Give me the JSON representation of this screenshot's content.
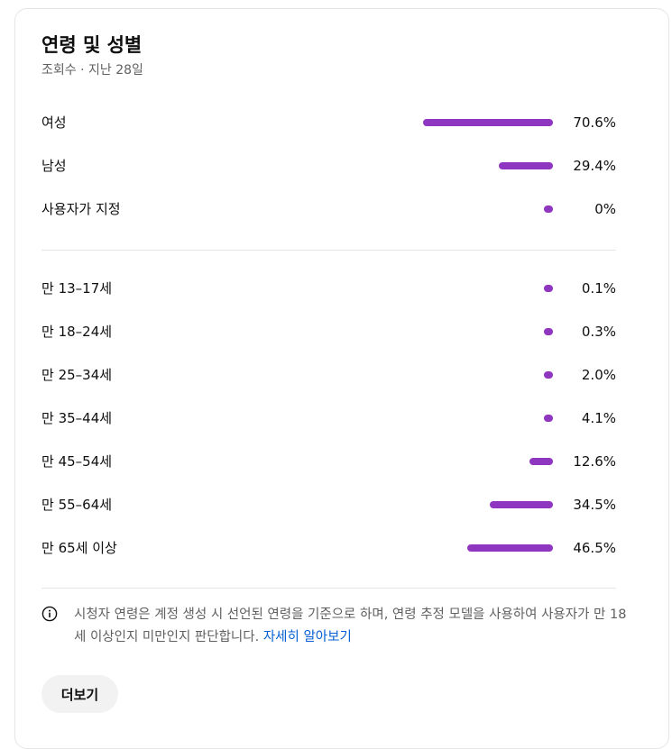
{
  "header": {
    "title": "연령 및 성별",
    "subtitle": "조회수 · 지난 28일"
  },
  "gender": [
    {
      "label": "여성",
      "value": "70.6%",
      "fraction": 0.706
    },
    {
      "label": "남성",
      "value": "29.4%",
      "fraction": 0.294
    },
    {
      "label": "사용자가 지정",
      "value": "0%",
      "fraction": 0.0
    }
  ],
  "age": [
    {
      "label": "만 13–17세",
      "value": "0.1%",
      "fraction": 0.001
    },
    {
      "label": "만 18–24세",
      "value": "0.3%",
      "fraction": 0.003
    },
    {
      "label": "만 25–34세",
      "value": "2.0%",
      "fraction": 0.02
    },
    {
      "label": "만 35–44세",
      "value": "4.1%",
      "fraction": 0.041
    },
    {
      "label": "만 45–54세",
      "value": "12.6%",
      "fraction": 0.126
    },
    {
      "label": "만 55–64세",
      "value": "34.5%",
      "fraction": 0.345
    },
    {
      "label": "만 65세 이상",
      "value": "46.5%",
      "fraction": 0.465
    }
  ],
  "note": {
    "icon": "info-icon",
    "text": "시청자 연령은 계정 생성 시 선언된 연령을 기준으로 하며, 연령 추정 모델을 사용하여 사용자가 만 18세 이상인지 미만인지 판단합니다.",
    "link_label": "자세히 알아보기"
  },
  "more_button": {
    "label": "더보기"
  },
  "colors": {
    "bar": "#8e36bf",
    "link": "#065fd4",
    "muted_text": "#606060",
    "divider": "#e5e5e5"
  }
}
